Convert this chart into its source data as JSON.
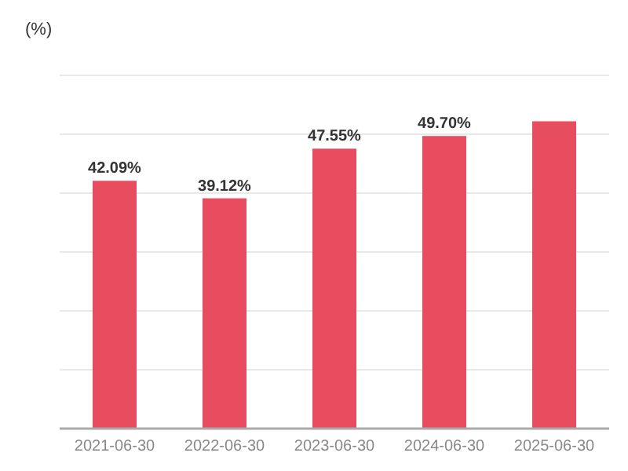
{
  "chart_data": {
    "type": "bar",
    "ylabel": "(%)",
    "categories": [
      "2021-06-30",
      "2022-06-30",
      "2023-06-30",
      "2024-06-30",
      "2025-06-30"
    ],
    "values": [
      42.09,
      39.12,
      47.55,
      49.7,
      52.2
    ],
    "value_labels": [
      "42.09%",
      "39.12%",
      "47.55%",
      "49.70%",
      null
    ],
    "color": "#e84c5f",
    "ylim": [
      0,
      60
    ],
    "yticks": [
      {
        "value": 0,
        "label": null
      },
      {
        "value": 10,
        "label": null
      },
      {
        "value": 20,
        "label": null
      },
      {
        "value": 30,
        "label": null
      },
      {
        "value": 40,
        "label": null
      },
      {
        "value": 50,
        "label": null
      },
      {
        "value": 60,
        "label": null
      }
    ],
    "tick_labels": "x",
    "grid": "y"
  }
}
